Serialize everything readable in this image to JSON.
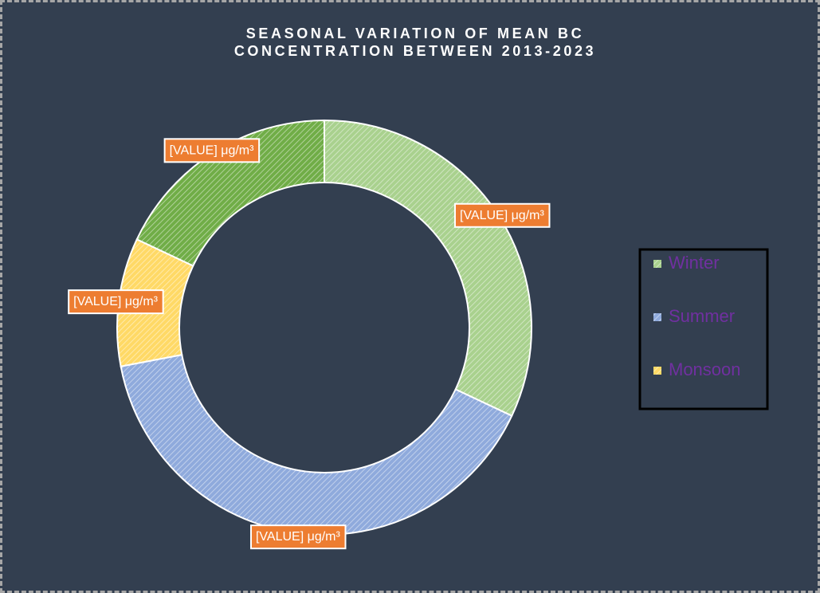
{
  "chart_data": {
    "type": "donut",
    "title": "SEASONAL VARIATION OF MEAN BC CONCENTRATION BETWEEN 2013-2023",
    "categories": [
      "Winter",
      "Summer",
      "Monsoon",
      null
    ],
    "values": [
      32,
      40,
      10,
      18
    ],
    "value_labels": [
      "[VALUE] μg/m³",
      "[VALUE] μg/m³",
      "[VALUE] μg/m³",
      "[VALUE] μg/m³"
    ],
    "colors": [
      "#a9d18e",
      "#8faadc",
      "#ffd966",
      "#70ad47"
    ],
    "legend": "right"
  }
}
